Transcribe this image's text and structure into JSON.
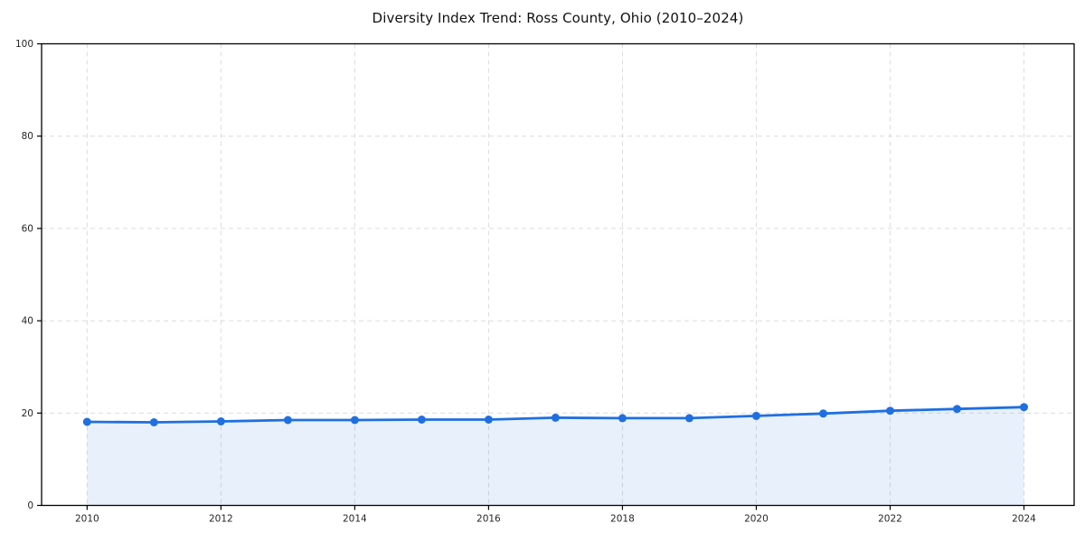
{
  "chart_data": {
    "type": "line",
    "title": "Diversity Index Trend: Ross County, Ohio (2010–2024)",
    "xlabel": "",
    "ylabel": "",
    "x": [
      2010,
      2011,
      2012,
      2013,
      2014,
      2015,
      2016,
      2017,
      2018,
      2019,
      2020,
      2021,
      2022,
      2023,
      2024
    ],
    "series": [
      {
        "name": "Diversity Index",
        "values": [
          18.1,
          18.0,
          18.2,
          18.5,
          18.5,
          18.6,
          18.6,
          19.0,
          18.9,
          18.9,
          19.4,
          19.9,
          20.5,
          20.9,
          21.3
        ]
      }
    ],
    "xlim": [
      2009.32,
      2024.75
    ],
    "ylim": [
      0,
      100
    ],
    "xticks": [
      2010,
      2012,
      2014,
      2016,
      2018,
      2020,
      2022,
      2024
    ],
    "yticks": [
      0,
      20,
      40,
      60,
      80,
      100
    ],
    "grid": true,
    "grid_style": "dashed",
    "legend": false,
    "area_fill": true,
    "colors": {
      "line": "#1f6fe0",
      "marker": "#1f6fe0",
      "fill": "rgba(31,111,224,0.10)",
      "grid": "#dcdcdc",
      "spine": "#000000",
      "tick_label": "#262626",
      "title": "#111111",
      "background": "#ffffff"
    }
  }
}
